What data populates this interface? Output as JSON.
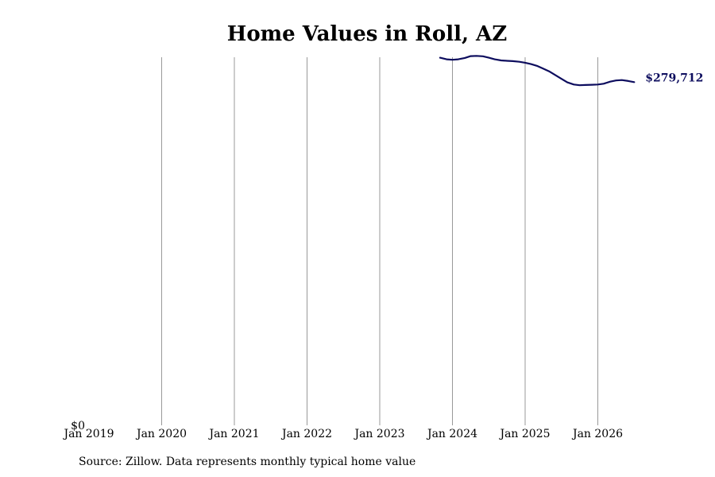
{
  "chart_data": {
    "type": "line",
    "title": "Home Values in Roll, AZ",
    "source_note": "Source: Zillow. Data represents monthly typical home value",
    "x_ticks": [
      "Jan 2019",
      "Jan 2020",
      "Jan 2021",
      "Jan 2022",
      "Jan 2023",
      "Jan 2024",
      "Jan 2025",
      "Jan 2026"
    ],
    "y_ticks": [
      "$0"
    ],
    "ylim": [
      0,
      300000
    ],
    "xlim": [
      2019.0,
      2026.75
    ],
    "grid": "vertical",
    "end_label": "$279,712",
    "colors": {
      "line": "#0d0d5e",
      "grid": "#999999"
    },
    "series": [
      {
        "points": [
          {
            "x": 2023.83,
            "y": 299600
          },
          {
            "x": 2023.92,
            "y": 298300
          },
          {
            "x": 2024.0,
            "y": 297900
          },
          {
            "x": 2024.08,
            "y": 298300
          },
          {
            "x": 2024.17,
            "y": 299400
          },
          {
            "x": 2024.25,
            "y": 300900
          },
          {
            "x": 2024.33,
            "y": 301100
          },
          {
            "x": 2024.42,
            "y": 300800
          },
          {
            "x": 2024.5,
            "y": 299600
          },
          {
            "x": 2024.58,
            "y": 298300
          },
          {
            "x": 2024.67,
            "y": 297400
          },
          {
            "x": 2024.75,
            "y": 297100
          },
          {
            "x": 2024.83,
            "y": 296800
          },
          {
            "x": 2024.92,
            "y": 296300
          },
          {
            "x": 2025.0,
            "y": 295500
          },
          {
            "x": 2025.08,
            "y": 294400
          },
          {
            "x": 2025.17,
            "y": 292800
          },
          {
            "x": 2025.25,
            "y": 290700
          },
          {
            "x": 2025.33,
            "y": 288500
          },
          {
            "x": 2025.42,
            "y": 285300
          },
          {
            "x": 2025.5,
            "y": 282400
          },
          {
            "x": 2025.58,
            "y": 279500
          },
          {
            "x": 2025.67,
            "y": 277800
          },
          {
            "x": 2025.75,
            "y": 277200
          },
          {
            "x": 2025.83,
            "y": 277400
          },
          {
            "x": 2025.92,
            "y": 277600
          },
          {
            "x": 2026.0,
            "y": 277800
          },
          {
            "x": 2026.08,
            "y": 278400
          },
          {
            "x": 2026.17,
            "y": 280100
          },
          {
            "x": 2026.25,
            "y": 281100
          },
          {
            "x": 2026.33,
            "y": 281400
          },
          {
            "x": 2026.42,
            "y": 280600
          },
          {
            "x": 2026.5,
            "y": 279712
          }
        ]
      }
    ]
  }
}
